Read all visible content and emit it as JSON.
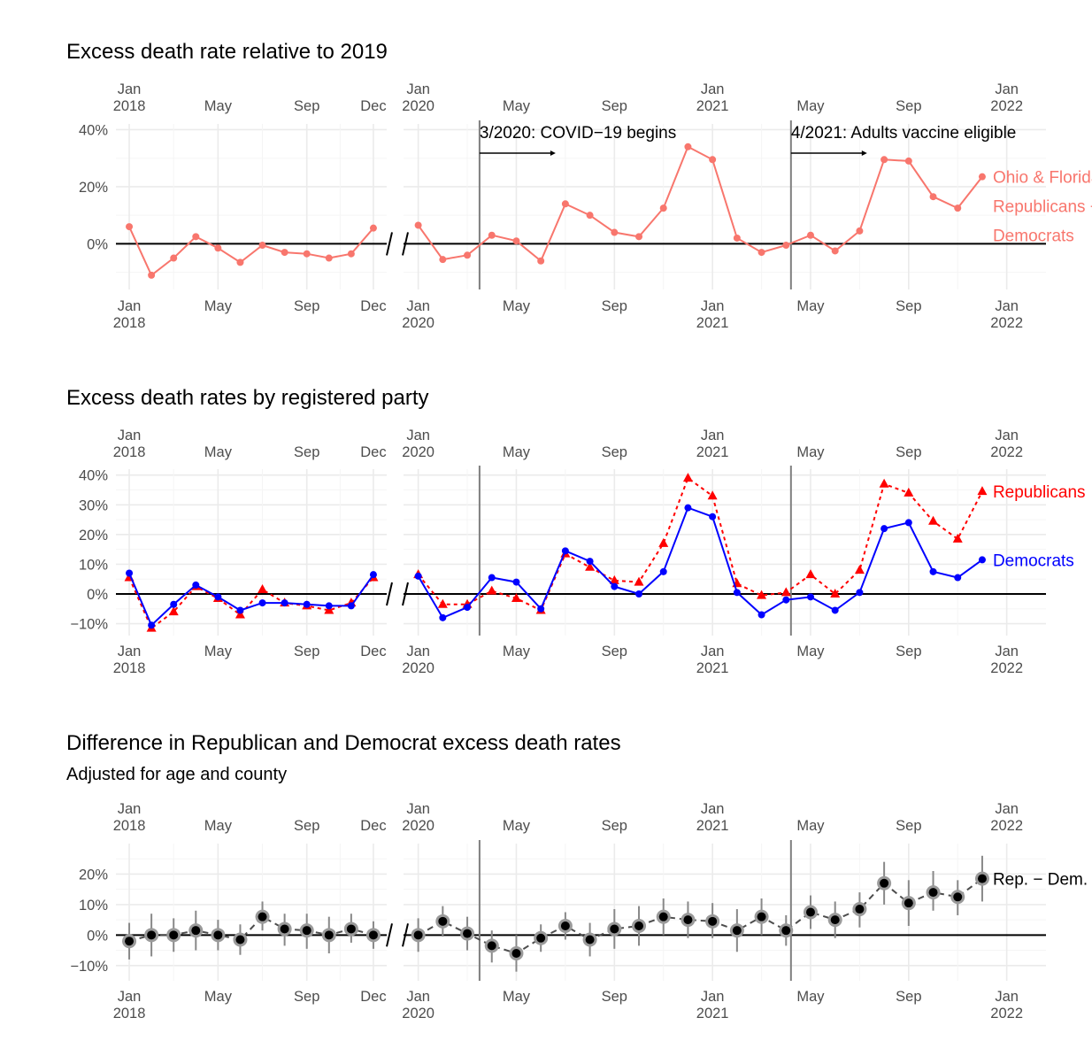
{
  "colors": {
    "combined": "#f8766d",
    "republicans": "#ff0000",
    "democrats": "#0000ff",
    "difference": "#000000",
    "grid_major": "#ebebeb",
    "grid_minor": "#f5f5f5",
    "zero_line": "#000000",
    "event_line": "#7f7f7f"
  },
  "axis": {
    "segments": [
      {
        "name": "2018",
        "month_range": [
          1,
          12
        ],
        "ticks": [
          {
            "month": 1,
            "label": "Jan",
            "year": "2018"
          },
          {
            "month": 5,
            "label": "May",
            "year": ""
          },
          {
            "month": 9,
            "label": "Sep",
            "year": ""
          },
          {
            "month": 12,
            "label": "Dec",
            "year": ""
          }
        ]
      },
      {
        "name": "2020-2022",
        "month_range": [
          25,
          50
        ],
        "ticks": [
          {
            "month": 25,
            "label": "Jan",
            "year": "2020"
          },
          {
            "month": 29,
            "label": "May",
            "year": ""
          },
          {
            "month": 33,
            "label": "Sep",
            "year": ""
          },
          {
            "month": 37,
            "label": "Jan",
            "year": "2021"
          },
          {
            "month": 41,
            "label": "May",
            "year": ""
          },
          {
            "month": 45,
            "label": "Sep",
            "year": ""
          },
          {
            "month": 49,
            "label": "Jan",
            "year": "2022"
          }
        ]
      }
    ],
    "break_symbol": "/ /"
  },
  "events": [
    {
      "month": 27.5,
      "label": "3/2020: COVID−19 begins"
    },
    {
      "month": 40.2,
      "label": "4/2021: Adults vaccine eligible"
    }
  ],
  "chart_data": [
    {
      "id": "combined",
      "type": "line",
      "title": "Excess death rate relative to 2019",
      "subtitle": "",
      "ylim": [
        -16,
        42
      ],
      "yticks": [
        0,
        20,
        40
      ],
      "ytick_labels": [
        "0%",
        "20%",
        "40%"
      ],
      "show_event_labels": true,
      "series": [
        {
          "name": "Ohio & Florida Republicans + Democrats",
          "label_lines": [
            "Ohio & Florida",
            "Republicans +",
            "Democrats"
          ],
          "color_key": "combined",
          "marker": "circle",
          "dash": false,
          "errorbars": false,
          "x": [
            1,
            2,
            3,
            4,
            5,
            6,
            7,
            8,
            9,
            10,
            11,
            12,
            25,
            26,
            27,
            28,
            29,
            30,
            31,
            32,
            33,
            34,
            35,
            36,
            37,
            38,
            39,
            40,
            41,
            42,
            43,
            44,
            45,
            46,
            47,
            48
          ],
          "y": [
            6,
            -11,
            -5,
            2.5,
            -1.5,
            -6.5,
            -0.5,
            -3,
            -3.5,
            -5,
            -3.5,
            5.5,
            6.5,
            -5.5,
            -4,
            3,
            1,
            -6,
            14,
            10,
            4,
            2.5,
            12.5,
            34,
            29.5,
            2,
            -3,
            -0.5,
            3,
            -2.5,
            4.5,
            29.5,
            29,
            16.5,
            12.5,
            23.5
          ]
        }
      ]
    },
    {
      "id": "by_party",
      "type": "line",
      "title": "Excess death rates by registered party",
      "subtitle": "",
      "ylim": [
        -14,
        42
      ],
      "yticks": [
        -10,
        0,
        10,
        20,
        30,
        40
      ],
      "ytick_labels": [
        "−10%",
        "0%",
        "10%",
        "20%",
        "30%",
        "40%"
      ],
      "show_event_labels": false,
      "series": [
        {
          "name": "Republicans",
          "label_lines": [
            "Republicans"
          ],
          "color_key": "republicans",
          "marker": "triangle",
          "dash": true,
          "errorbars": false,
          "x": [
            1,
            2,
            3,
            4,
            5,
            6,
            7,
            8,
            9,
            10,
            11,
            12,
            25,
            26,
            27,
            28,
            29,
            30,
            31,
            32,
            33,
            34,
            35,
            36,
            37,
            38,
            39,
            40,
            41,
            42,
            43,
            44,
            45,
            46,
            47,
            48
          ],
          "y": [
            5.5,
            -11.5,
            -6,
            2.5,
            -1.5,
            -7,
            1.5,
            -3,
            -4,
            -5.5,
            -3,
            5.5,
            6.5,
            -3.5,
            -3.5,
            1,
            -1.5,
            -5.5,
            13.5,
            9,
            4.5,
            4,
            17,
            39,
            33,
            3.5,
            -0.5,
            0.5,
            6.5,
            0,
            8,
            37,
            34,
            24.5,
            18.5,
            34.5
          ]
        },
        {
          "name": "Democrats",
          "label_lines": [
            "Democrats"
          ],
          "color_key": "democrats",
          "marker": "circle",
          "dash": false,
          "errorbars": false,
          "x": [
            1,
            2,
            3,
            4,
            5,
            6,
            7,
            8,
            9,
            10,
            11,
            12,
            25,
            26,
            27,
            28,
            29,
            30,
            31,
            32,
            33,
            34,
            35,
            36,
            37,
            38,
            39,
            40,
            41,
            42,
            43,
            44,
            45,
            46,
            47,
            48
          ],
          "y": [
            7,
            -10.5,
            -3.5,
            3,
            -1,
            -5.5,
            -3,
            -3,
            -3.5,
            -4,
            -4,
            6.5,
            6,
            -8,
            -4.5,
            5.5,
            4,
            -5,
            14.5,
            11,
            2.5,
            0,
            7.5,
            29,
            26,
            0.5,
            -7,
            -2,
            -1,
            -5.5,
            0.5,
            22,
            24,
            7.5,
            5.5,
            11.5
          ]
        }
      ]
    },
    {
      "id": "difference",
      "type": "line",
      "title": "Difference in Republican and Democrat excess death rates",
      "subtitle": "Adjusted for age and county",
      "ylim": [
        -15,
        30
      ],
      "yticks": [
        -10,
        0,
        10,
        20
      ],
      "ytick_labels": [
        "−10%",
        "0%",
        "10%",
        "20%"
      ],
      "show_event_labels": false,
      "series": [
        {
          "name": "Rep. − Dem.",
          "label_lines": [
            "Rep. − Dem."
          ],
          "color_key": "difference",
          "marker": "circle",
          "dash": true,
          "errorbars": true,
          "x": [
            1,
            2,
            3,
            4,
            5,
            6,
            7,
            8,
            9,
            10,
            11,
            12,
            25,
            26,
            27,
            28,
            29,
            30,
            31,
            32,
            33,
            34,
            35,
            36,
            37,
            38,
            39,
            40,
            41,
            42,
            43,
            44,
            45,
            46,
            47,
            48
          ],
          "y": [
            -2,
            0,
            0,
            1.5,
            0,
            -1.5,
            6,
            2,
            1.5,
            0,
            2,
            0,
            0,
            4.5,
            0.5,
            -3.5,
            -6,
            -1,
            3,
            -1.5,
            2,
            3,
            6,
            5,
            4.5,
            1.5,
            6,
            1.5,
            7.5,
            5,
            8.5,
            17,
            10.5,
            14,
            12.5,
            18.5
          ],
          "lower": [
            -8,
            -7,
            -5.5,
            -5,
            -5,
            -6.5,
            1.5,
            -3.5,
            -4.5,
            -6,
            -2.5,
            -4.5,
            -5.5,
            -0.5,
            -5,
            -9,
            -12,
            -5.5,
            -1.5,
            -7,
            -4.5,
            -3.5,
            0,
            -1,
            -1,
            -5.5,
            0,
            -3.5,
            2,
            -1,
            2.5,
            10,
            3,
            8,
            6.5,
            11
          ],
          "upper": [
            4,
            7,
            5.5,
            8,
            5,
            3.5,
            11,
            7,
            7,
            6,
            7,
            4.5,
            5.5,
            9.5,
            6,
            1.5,
            0,
            3.5,
            7.5,
            4,
            8.5,
            9.5,
            12,
            11,
            10.5,
            8.5,
            12,
            6.5,
            13,
            11,
            14,
            24,
            18,
            21,
            18,
            26
          ]
        }
      ]
    }
  ]
}
